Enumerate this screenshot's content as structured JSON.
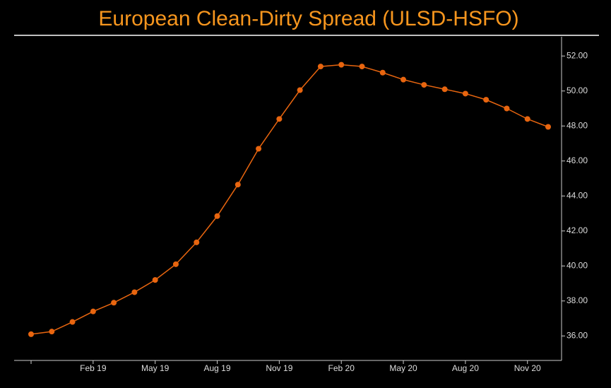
{
  "chart_data": {
    "type": "line",
    "title": "European Clean-Dirty Spread (ULSD-HSFO)",
    "categories": [
      null,
      null,
      null,
      "Feb 19",
      null,
      null,
      "May 19",
      null,
      null,
      "Aug 19",
      null,
      null,
      "Nov 19",
      null,
      null,
      "Feb 20",
      null,
      null,
      "May 20",
      null,
      null,
      "Aug 20",
      null,
      null,
      "Nov 20",
      null
    ],
    "series": [
      {
        "name": "ULSD-HSFO",
        "color": "#e8650f",
        "values": [
          36.1,
          36.25,
          36.8,
          37.4,
          37.9,
          38.5,
          39.2,
          40.1,
          41.35,
          42.85,
          44.65,
          46.7,
          48.4,
          50.05,
          51.4,
          51.5,
          51.4,
          51.05,
          50.65,
          50.35,
          50.1,
          49.85,
          49.5,
          49.0,
          48.4,
          47.95
        ]
      }
    ],
    "ylim": [
      34.6,
      53.1
    ],
    "yticks": [
      {
        "value": 36,
        "label": "36.00"
      },
      {
        "value": 38,
        "label": "38.00"
      },
      {
        "value": 40,
        "label": "40.00"
      },
      {
        "value": 42,
        "label": "42.00"
      },
      {
        "value": 44,
        "label": "44.00"
      },
      {
        "value": 46,
        "label": "46.00"
      },
      {
        "value": 48,
        "label": "48.00"
      },
      {
        "value": 50,
        "label": "50.00"
      },
      {
        "value": 52,
        "label": "52.00"
      }
    ],
    "y_axis_side": "right"
  }
}
